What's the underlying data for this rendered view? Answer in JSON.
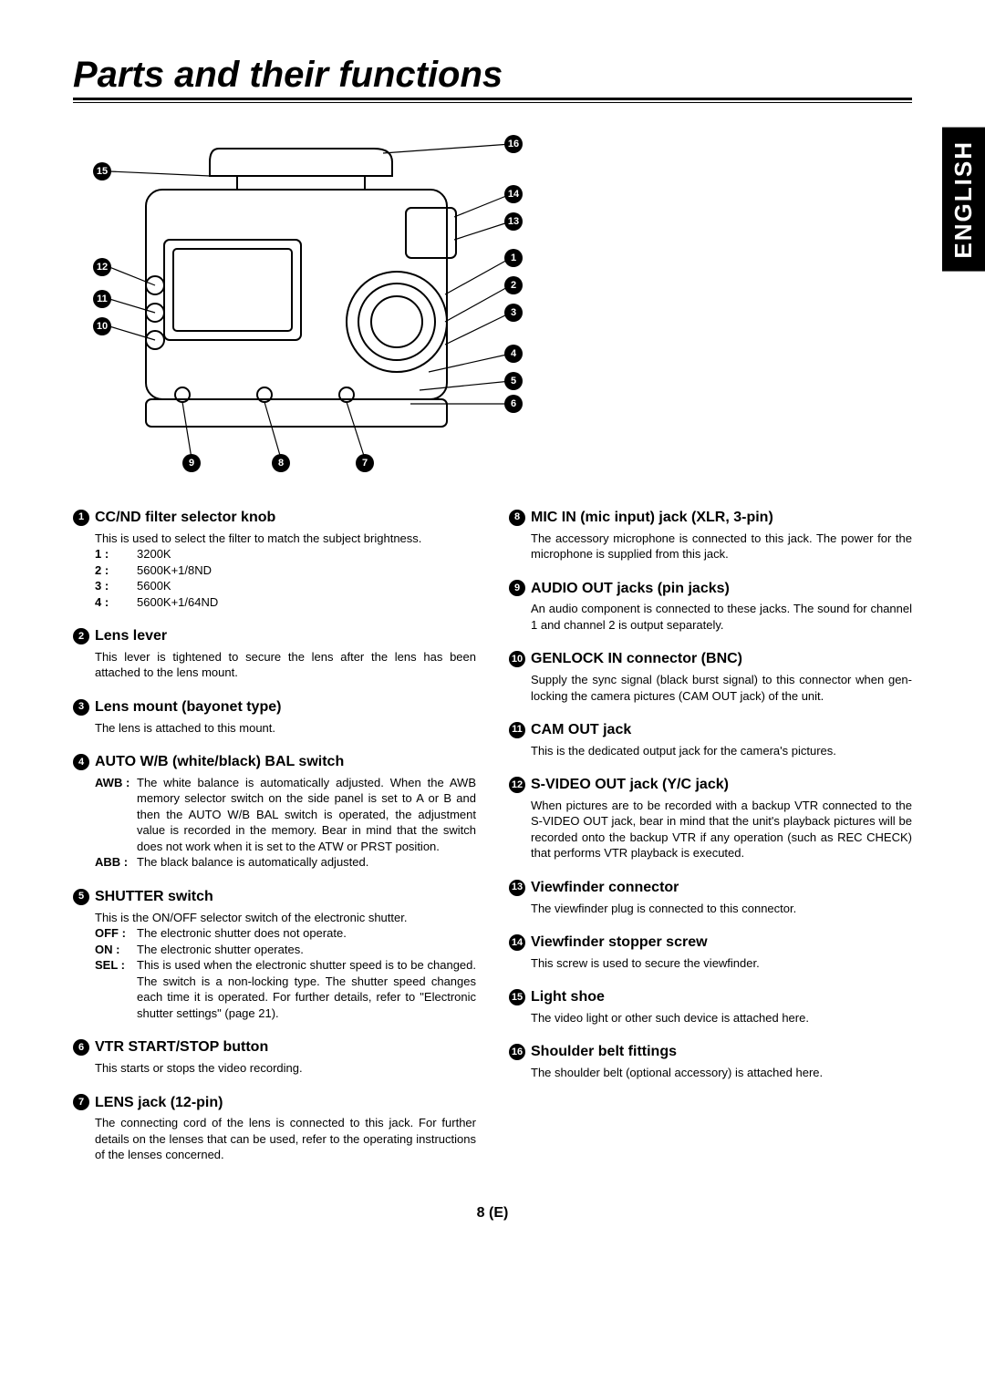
{
  "page": {
    "title": "Parts and their functions",
    "language_tab": "ENGLISH",
    "page_number": "8 (E)"
  },
  "diagram": {
    "callouts_right": [
      "16",
      "14",
      "13",
      "1",
      "2",
      "3",
      "4",
      "5",
      "6"
    ],
    "callouts_bottom": [
      "9",
      "8",
      "7"
    ],
    "callouts_left": [
      "15",
      "12",
      "11",
      "10"
    ]
  },
  "left_column": [
    {
      "num": "1",
      "title": "CC/ND filter selector knob",
      "body": "This is used to select the filter to match the subject brightness.",
      "kv": [
        {
          "k": "1 :",
          "v": "3200K"
        },
        {
          "k": "2 :",
          "v": "5600K+1/8ND"
        },
        {
          "k": "3 :",
          "v": "5600K"
        },
        {
          "k": "4 :",
          "v": "5600K+1/64ND"
        }
      ]
    },
    {
      "num": "2",
      "title": "Lens lever",
      "body": "This lever is tightened to secure the lens after the lens has been attached to the lens mount."
    },
    {
      "num": "3",
      "title": "Lens mount (bayonet type)",
      "body": "The lens is attached to this mount."
    },
    {
      "num": "4",
      "title": "AUTO W/B (white/black) BAL switch",
      "awb": [
        {
          "k": "AWB :",
          "v": "The white balance is automatically adjusted.  When the AWB memory selector switch on the side panel is set to A or B and then the AUTO W/B BAL switch is operated, the adjustment value is recorded in the memory.  Bear in mind that the switch does not work when it is set to the ATW or PRST position."
        },
        {
          "k": "ABB :",
          "v": "The black balance is automatically adjusted."
        }
      ]
    },
    {
      "num": "5",
      "title": "SHUTTER switch",
      "body": "This is the ON/OFF selector switch of the electronic shutter.",
      "awb": [
        {
          "k": "OFF :",
          "v": "The electronic shutter does not operate."
        },
        {
          "k": "ON   :",
          "v": "The electronic shutter operates."
        },
        {
          "k": "SEL :",
          "v": "This is used when the electronic shutter speed is to be changed.  The switch is a non-locking type.  The shutter speed changes each time it is operated.  For further details, refer to \"Electronic shutter settings\" (page 21)."
        }
      ]
    },
    {
      "num": "6",
      "title": "VTR START/STOP button",
      "body": "This starts or stops the video recording."
    },
    {
      "num": "7",
      "title": "LENS jack (12-pin)",
      "body": "The connecting cord of the lens is connected to this jack.  For further details on the lenses that can be used, refer to the operating instructions of the lenses concerned."
    }
  ],
  "right_column": [
    {
      "num": "8",
      "title": "MIC IN (mic input) jack (XLR, 3-pin)",
      "body": "The accessory microphone is connected to this jack.  The power for the microphone is supplied from this jack."
    },
    {
      "num": "9",
      "title": "AUDIO OUT jacks (pin jacks)",
      "body": "An audio component is connected to these jacks.  The sound for channel 1 and channel 2 is output separately."
    },
    {
      "num": "10",
      "title": "GENLOCK IN connector (BNC)",
      "body": "Supply the sync signal (black burst signal) to this connector when gen-locking the camera pictures (CAM OUT jack) of the unit."
    },
    {
      "num": "11",
      "title": "CAM OUT jack",
      "body": "This is the dedicated output jack for the camera's pictures."
    },
    {
      "num": "12",
      "title": "S-VIDEO OUT jack (Y/C jack)",
      "body": "When pictures are to be recorded with a backup VTR connected to the S-VIDEO OUT jack, bear in mind that the unit's playback pictures will be recorded onto the backup VTR if any operation (such as REC CHECK) that performs VTR playback is executed."
    },
    {
      "num": "13",
      "title": "Viewfinder connector",
      "body": "The viewfinder plug is connected to this connector."
    },
    {
      "num": "14",
      "title": "Viewfinder stopper screw",
      "body": "This screw is used to secure the viewfinder."
    },
    {
      "num": "15",
      "title": "Light shoe",
      "body": "The video light or other such device is attached here."
    },
    {
      "num": "16",
      "title": "Shoulder belt fittings",
      "body": "The shoulder belt (optional accessory) is attached here."
    }
  ]
}
